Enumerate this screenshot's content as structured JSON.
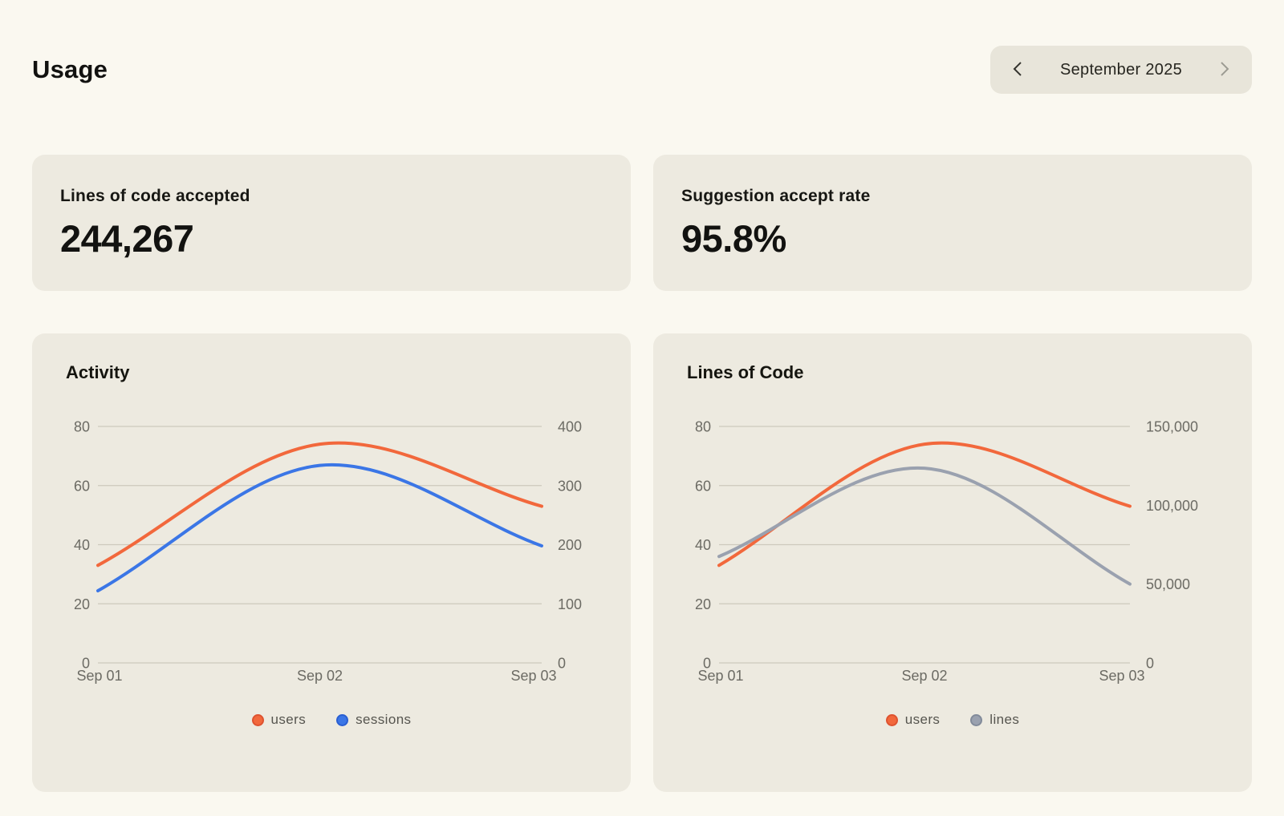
{
  "page": {
    "title": "Usage"
  },
  "month_nav": {
    "label": "September 2025",
    "prev_icon": "chevron-left",
    "next_icon": "chevron-right",
    "prev_color": "#33322D",
    "next_color": "#9C9B92"
  },
  "stats": [
    {
      "label": "Lines of code accepted",
      "value": "244,267"
    },
    {
      "label": "Suggestion accept rate",
      "value": "95.8%"
    }
  ],
  "colors": {
    "page_bg": "#FAF8F0",
    "card_bg": "#EDEAE0",
    "pill_bg": "#E8E5DA",
    "gridline": "#CDC9BD",
    "axis_text": "#6C6B64",
    "users_orange": "#F2683C",
    "sessions_blue": "#3B76E6",
    "lines_gray": "#9AA1AF"
  },
  "chart_data": [
    {
      "type": "line",
      "title": "Activity",
      "x": [
        "Sep 01",
        "Sep 02",
        "Sep 03"
      ],
      "grid": true,
      "legend_position": "bottom",
      "left_axis": {
        "range": [
          0,
          80
        ],
        "ticks": [
          0,
          20,
          40,
          60,
          80
        ],
        "labels": [
          "0",
          "20",
          "40",
          "60",
          "80"
        ]
      },
      "right_axis": {
        "range": [
          0,
          400
        ],
        "ticks": [
          0,
          100,
          200,
          300,
          400
        ],
        "labels": [
          "0",
          "100",
          "200",
          "300",
          "400"
        ]
      },
      "series": [
        {
          "name": "users",
          "axis": "left",
          "color": "#F2683C",
          "dot_border": "#DE5330",
          "values": [
            33,
            74,
            53
          ]
        },
        {
          "name": "sessions",
          "axis": "right",
          "color": "#3B76E6",
          "dot_border": "#2A5FD2",
          "values": [
            122,
            334,
            198
          ]
        }
      ]
    },
    {
      "type": "line",
      "title": "Lines of Code",
      "x": [
        "Sep 01",
        "Sep 02",
        "Sep 03"
      ],
      "grid": true,
      "legend_position": "bottom",
      "left_axis": {
        "range": [
          0,
          80
        ],
        "ticks": [
          0,
          20,
          40,
          60,
          80
        ],
        "labels": [
          "0",
          "20",
          "40",
          "60",
          "80"
        ]
      },
      "right_axis": {
        "range": [
          0,
          150000
        ],
        "ticks": [
          0,
          50000,
          100000,
          150000
        ],
        "labels": [
          "0",
          "50,000",
          "100,000",
          "150,000"
        ]
      },
      "series": [
        {
          "name": "users",
          "axis": "left",
          "color": "#F2683C",
          "dot_border": "#DE5330",
          "values": [
            33,
            74,
            53
          ]
        },
        {
          "name": "lines",
          "axis": "right",
          "color": "#9AA1AF",
          "dot_border": "#828B9A",
          "values": [
            67500,
            123500,
            50000
          ]
        }
      ]
    }
  ]
}
